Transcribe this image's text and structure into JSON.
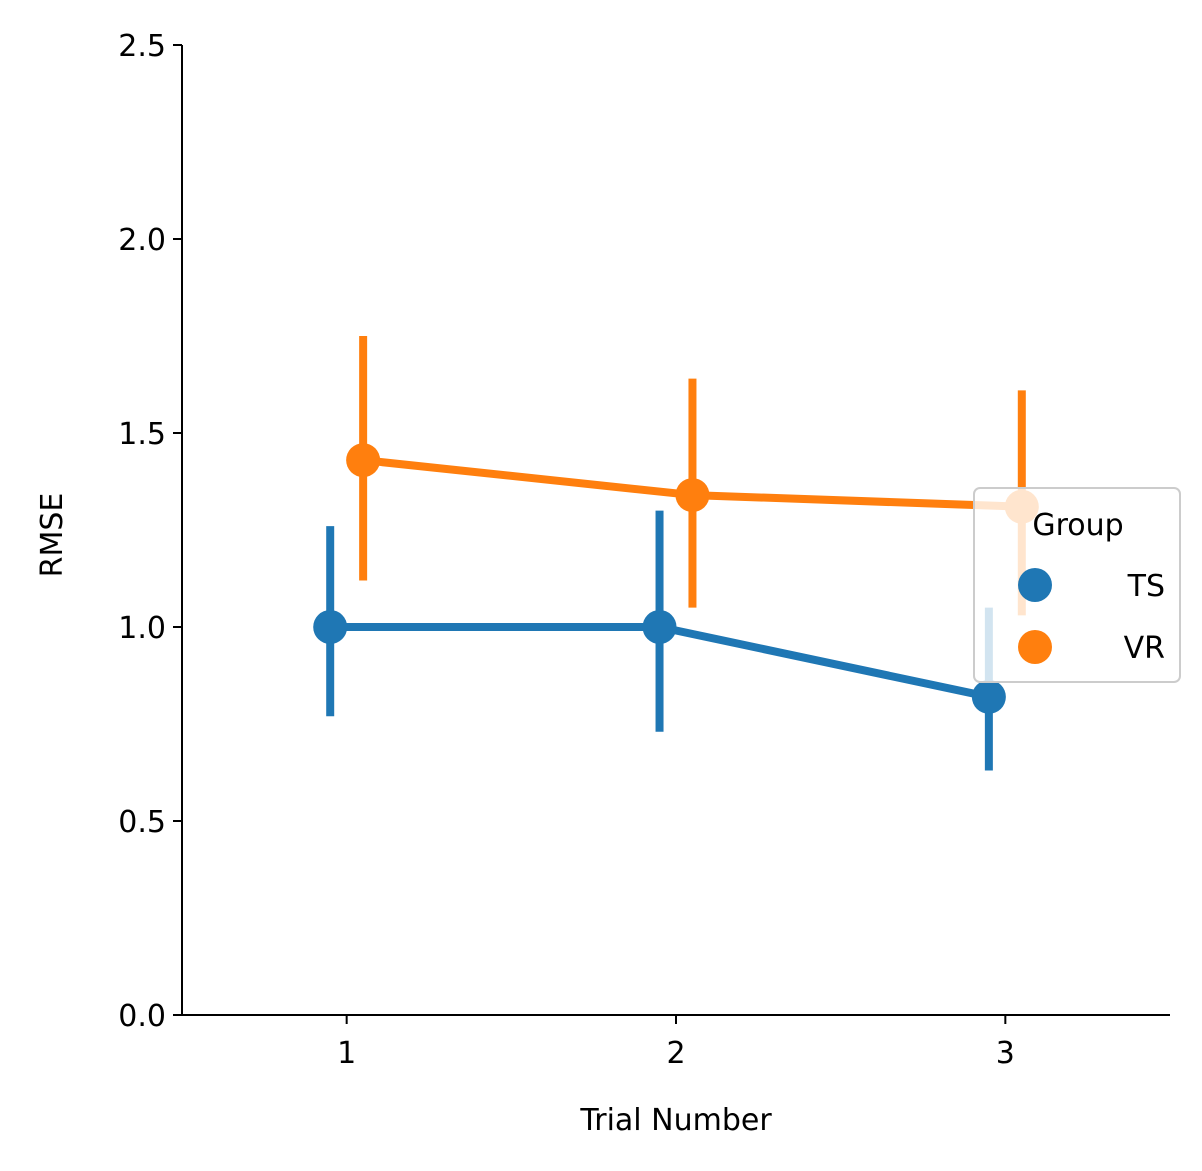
{
  "chart_data": {
    "type": "line",
    "title": "",
    "xlabel": "Trial Number",
    "ylabel": "RMSE",
    "categories": [
      "1",
      "2",
      "3"
    ],
    "ylim": [
      0,
      2.5
    ],
    "yticks": [
      "0.0",
      "0.5",
      "1.0",
      "1.5",
      "2.0",
      "2.5"
    ],
    "grid": false,
    "legend": {
      "title": "Group",
      "placement": "right"
    },
    "series": [
      {
        "name": "TS",
        "color": "#1f77b4",
        "values": [
          1.0,
          1.0,
          0.82
        ],
        "ci_low": [
          0.77,
          0.73,
          0.63
        ],
        "ci_high": [
          1.26,
          1.3,
          1.05
        ]
      },
      {
        "name": "VR",
        "color": "#ff7f0e",
        "values": [
          1.43,
          1.34,
          1.31
        ],
        "ci_low": [
          1.12,
          1.05,
          1.03
        ],
        "ci_high": [
          1.75,
          1.64,
          1.61
        ]
      }
    ]
  }
}
